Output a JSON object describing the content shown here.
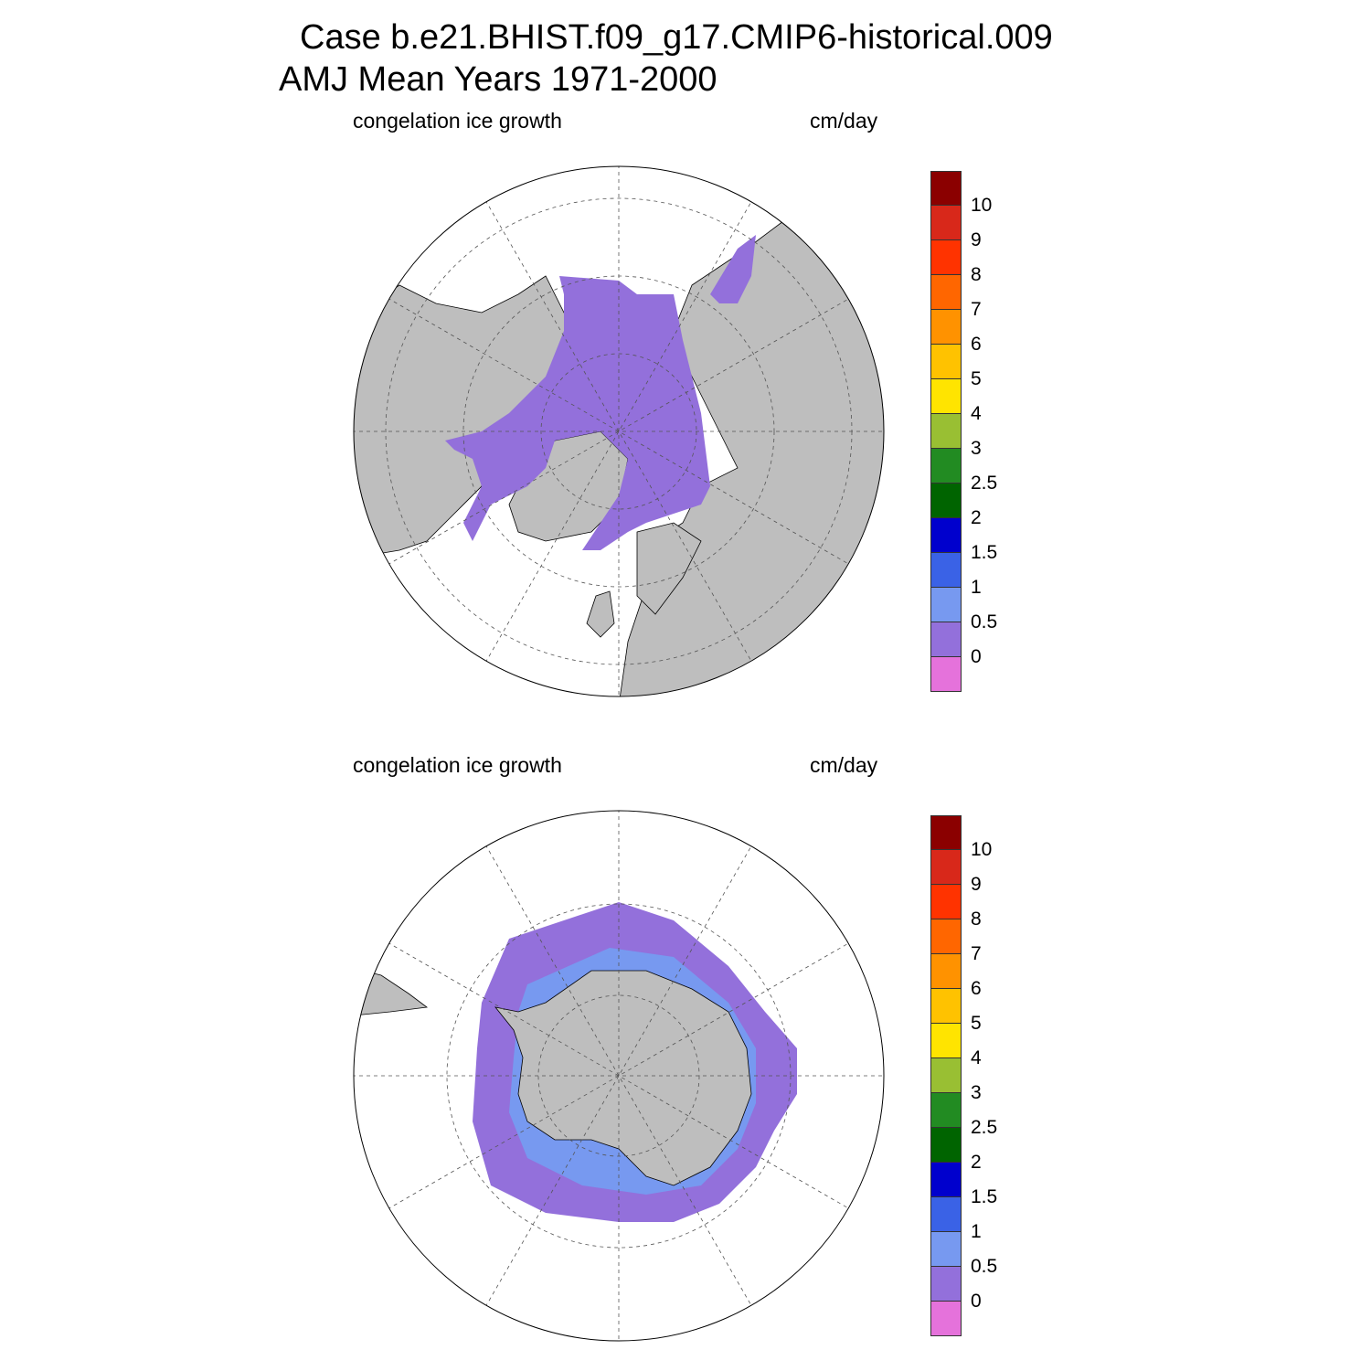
{
  "title": {
    "line1": "Case b.e21.BHIST.f09_g17.CMIP6-historical.009",
    "line2": "AMJ Mean   Years 1971-2000"
  },
  "panels": [
    {
      "name": "north",
      "left_title": "congelation ice growth",
      "right_title": "cm/day"
    },
    {
      "name": "south",
      "left_title": "congelation ice growth",
      "right_title": "cm/day"
    }
  ],
  "colorbar": {
    "labels": [
      "10",
      "9",
      "8",
      "7",
      "6",
      "5",
      "4",
      "3",
      "2.5",
      "2",
      "1.5",
      "1",
      "0.5",
      "0"
    ],
    "colors": [
      "#8b0000",
      "#d8281a",
      "#ff3300",
      "#ff6600",
      "#ff9200",
      "#ffc200",
      "#ffe400",
      "#99bf33",
      "#228b22",
      "#006400",
      "#0000cd",
      "#3a62e6",
      "#7799f0",
      "#9370db",
      "#e572db"
    ]
  },
  "colors": {
    "land": "#bebebe",
    "ice_low": "#9370db",
    "ice_mid": "#7799f0"
  }
}
